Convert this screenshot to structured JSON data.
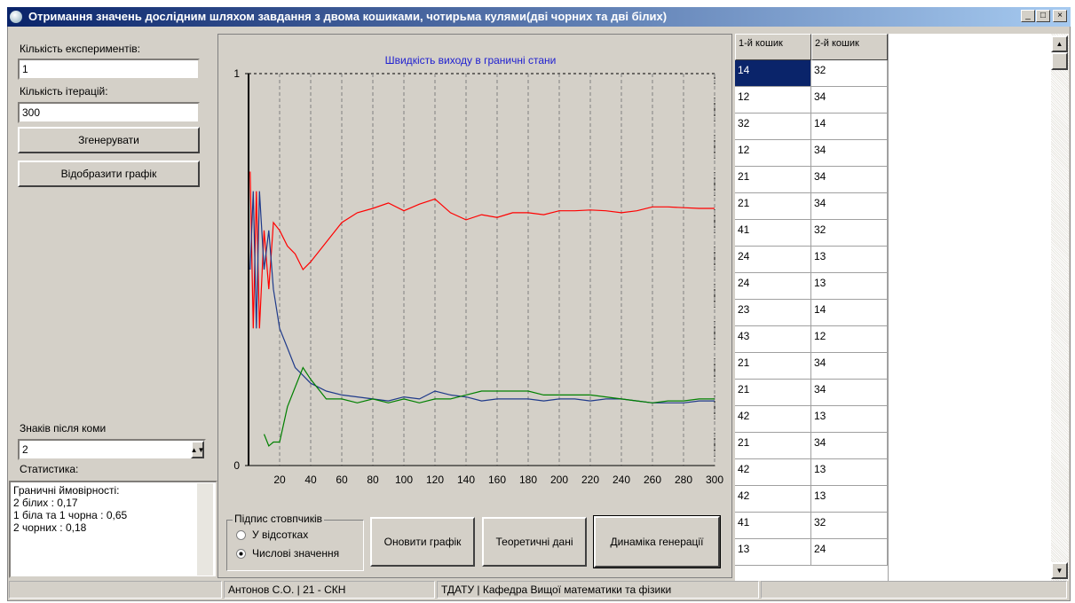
{
  "window": {
    "title": "Отримання значень дослідним шляхом завдання з двома кошиками, чотирьма кулями(дві чорних та дві білих)"
  },
  "left_panel": {
    "experiments_label": "Кількість експериментів:",
    "experiments_value": "1",
    "iterations_label": "Кількість ітерацій:",
    "iterations_value": "300",
    "generate_button": "Згенерувати",
    "show_chart_button": "Відобразити графік",
    "decimals_label": "Знаків після коми",
    "decimals_value": "2",
    "statistics_label": "Статистика:",
    "statistics_lines": [
      "Граничні ймовірності:",
      "2 білих : 0,17",
      "1 біла та 1 чорна : 0,65",
      "2 чорних : 0,18"
    ]
  },
  "chart_data": {
    "type": "line",
    "title": "Швидкість виходу в граничні стани",
    "x": [
      1,
      3,
      5,
      7,
      10,
      13,
      16,
      20,
      25,
      30,
      35,
      40,
      50,
      60,
      70,
      80,
      90,
      100,
      110,
      120,
      130,
      140,
      150,
      160,
      170,
      180,
      190,
      200,
      210,
      220,
      230,
      240,
      250,
      260,
      270,
      280,
      290,
      300
    ],
    "series": [
      {
        "color": "#ff0000",
        "values": [
          0.75,
          0.35,
          0.7,
          0.35,
          0.6,
          0.45,
          0.62,
          0.6,
          0.56,
          0.54,
          0.5,
          0.52,
          0.57,
          0.62,
          0.645,
          0.656,
          0.67,
          0.65,
          0.667,
          0.68,
          0.645,
          0.627,
          0.64,
          0.633,
          0.645,
          0.645,
          0.64,
          0.65,
          0.65,
          0.652,
          0.65,
          0.645,
          0.65,
          0.66,
          0.66,
          0.658,
          0.656,
          0.656
        ]
      },
      {
        "color": "#1f3a8a",
        "values": [
          0.5,
          0.7,
          0.35,
          0.7,
          0.5,
          0.6,
          0.45,
          0.35,
          0.3,
          0.25,
          0.23,
          0.21,
          0.19,
          0.18,
          0.175,
          0.17,
          0.165,
          0.175,
          0.17,
          0.19,
          0.18,
          0.175,
          0.165,
          0.17,
          0.17,
          0.17,
          0.165,
          0.17,
          0.17,
          0.165,
          0.17,
          0.17,
          0.165,
          0.16,
          0.16,
          0.16,
          0.165,
          0.165
        ]
      },
      {
        "color": "#008000",
        "values": [
          null,
          null,
          null,
          null,
          0.08,
          0.05,
          0.06,
          0.06,
          0.15,
          0.2,
          0.25,
          0.22,
          0.17,
          0.17,
          0.16,
          0.17,
          0.16,
          0.17,
          0.16,
          0.17,
          0.17,
          0.18,
          0.19,
          0.19,
          0.19,
          0.19,
          0.18,
          0.18,
          0.18,
          0.18,
          0.175,
          0.17,
          0.165,
          0.16,
          0.165,
          0.165,
          0.17,
          0.17
        ]
      }
    ],
    "xlim": [
      0,
      300
    ],
    "xticks": [
      20,
      40,
      60,
      80,
      100,
      120,
      140,
      160,
      180,
      200,
      220,
      240,
      260,
      280,
      300
    ],
    "ylim": [
      0,
      1
    ],
    "yticks": [
      0,
      1
    ],
    "grid": true
  },
  "controls": {
    "group_label": "Підпис стовпчиків",
    "radio_options": [
      "У відсотках",
      "Числові значення"
    ],
    "update_button": "Оновити графік",
    "theory_button": "Теоретичні дані",
    "dynamics_button": "Динаміка генерації"
  },
  "table": {
    "headers": [
      "1-й кошик",
      "2-й кошик"
    ],
    "rows": [
      [
        "14",
        "32"
      ],
      [
        "12",
        "34"
      ],
      [
        "32",
        "14"
      ],
      [
        "12",
        "34"
      ],
      [
        "21",
        "34"
      ],
      [
        "21",
        "34"
      ],
      [
        "41",
        "32"
      ],
      [
        "24",
        "13"
      ],
      [
        "24",
        "13"
      ],
      [
        "23",
        "14"
      ],
      [
        "43",
        "12"
      ],
      [
        "21",
        "34"
      ],
      [
        "21",
        "34"
      ],
      [
        "42",
        "13"
      ],
      [
        "21",
        "34"
      ],
      [
        "42",
        "13"
      ],
      [
        "42",
        "13"
      ],
      [
        "41",
        "32"
      ],
      [
        "13",
        "24"
      ]
    ]
  },
  "status_bar": [
    "Антонов С.О.  | 21 - СКН",
    "ТДАТУ | Кафедра Вищої математики та фізики"
  ]
}
